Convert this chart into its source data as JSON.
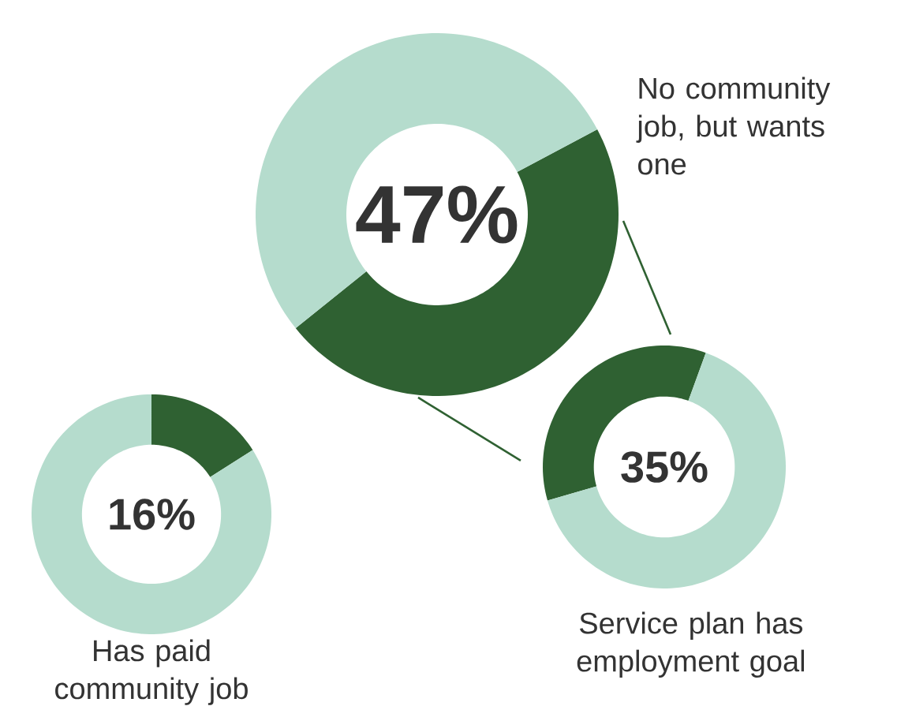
{
  "chart_data": [
    {
      "type": "donut",
      "title": "No community job, but wants one",
      "categories": [
        null,
        null
      ],
      "values": [
        47,
        53
      ],
      "colors": [
        "#2f6132",
        "#b5dccd"
      ],
      "annotations": [
        "47%"
      ]
    },
    {
      "type": "donut",
      "title": "Service plan has employment goal",
      "categories": [
        null,
        null
      ],
      "values": [
        35,
        65
      ],
      "colors": [
        "#2f6132",
        "#b5dccd"
      ],
      "annotations": [
        "35%"
      ]
    },
    {
      "type": "donut",
      "title": "Has paid community job",
      "categories": [
        null,
        null
      ],
      "values": [
        16,
        84
      ],
      "colors": [
        "#2f6132",
        "#b5dccd"
      ],
      "annotations": [
        "16%"
      ]
    }
  ]
}
